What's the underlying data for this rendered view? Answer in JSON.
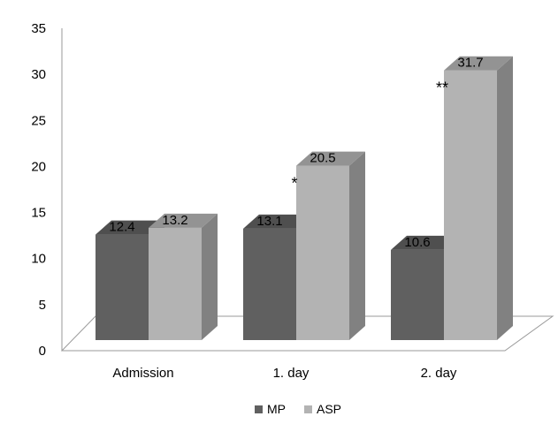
{
  "chart_data": {
    "type": "bar",
    "style": "3d-clustered-column",
    "categories": [
      "Admission",
      "1. day",
      "2. day"
    ],
    "series": [
      {
        "name": "MP",
        "values": [
          12.4,
          13.1,
          10.6
        ],
        "color": "#606060"
      },
      {
        "name": "ASP",
        "values": [
          13.2,
          20.5,
          31.7
        ],
        "color": "#b3b3b3"
      }
    ],
    "data_labels": [
      [
        "12.4",
        "13.2"
      ],
      [
        "13.1",
        "20.5"
      ],
      [
        "10.6",
        "31.7"
      ]
    ],
    "annotations": [
      "",
      "*",
      "**"
    ],
    "ylim": [
      0,
      35
    ],
    "yticks": [
      "0",
      "5",
      "10",
      "15",
      "20",
      "25",
      "30",
      "35"
    ],
    "grid": false,
    "legend_position": "bottom",
    "title": "",
    "xlabel": "",
    "ylabel": ""
  }
}
